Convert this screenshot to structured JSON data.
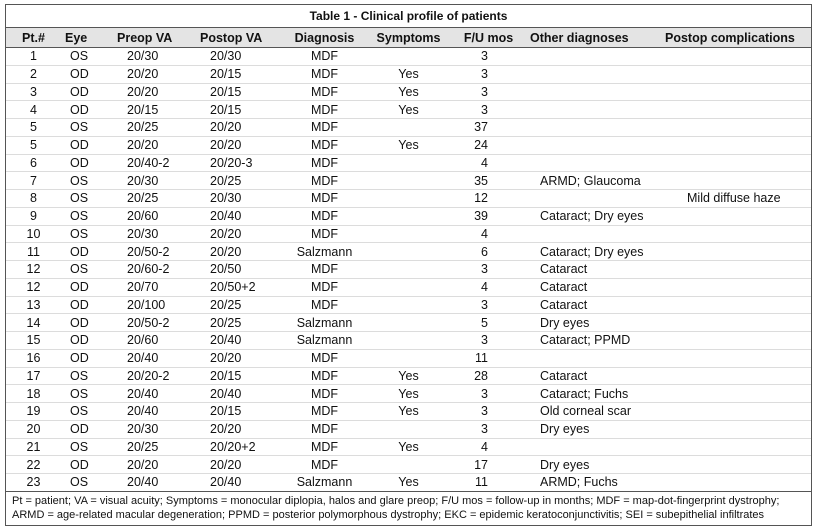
{
  "title": "Table 1 - Clinical profile of patients",
  "table": {
    "columns": [
      "Pt.#",
      "Eye",
      "Preop VA",
      "Postop VA",
      "Diagnosis",
      "Symptoms",
      "F/U mos",
      "Other diagnoses",
      "Postop complications"
    ],
    "rows": [
      [
        1,
        "OS",
        "20/30",
        "20/30",
        "MDF",
        null,
        3,
        null,
        null
      ],
      [
        2,
        "OD",
        "20/20",
        "20/15",
        "MDF",
        "Yes",
        3,
        null,
        null
      ],
      [
        3,
        "OD",
        "20/20",
        "20/15",
        "MDF",
        "Yes",
        3,
        null,
        null
      ],
      [
        4,
        "OD",
        "20/15",
        "20/15",
        "MDF",
        "Yes",
        3,
        null,
        null
      ],
      [
        5,
        "OS",
        "20/25",
        "20/20",
        "MDF",
        null,
        37,
        null,
        null
      ],
      [
        5,
        "OD",
        "20/20",
        "20/20",
        "MDF",
        "Yes",
        24,
        null,
        null
      ],
      [
        6,
        "OD",
        "20/40-2",
        "20/20-3",
        "MDF",
        null,
        4,
        null,
        null
      ],
      [
        7,
        "OS",
        "20/30",
        "20/25",
        "MDF",
        null,
        35,
        "ARMD; Glaucoma",
        null
      ],
      [
        8,
        "OS",
        "20/25",
        "20/30",
        "MDF",
        null,
        12,
        null,
        "Mild diffuse haze"
      ],
      [
        9,
        "OS",
        "20/60",
        "20/40",
        "MDF",
        null,
        39,
        "Cataract; Dry eyes",
        null
      ],
      [
        10,
        "OS",
        "20/30",
        "20/20",
        "MDF",
        null,
        4,
        null,
        null
      ],
      [
        11,
        "OD",
        "20/50-2",
        "20/20",
        "Salzmann",
        null,
        6,
        "Cataract; Dry eyes",
        null
      ],
      [
        12,
        "OS",
        "20/60-2",
        "20/50",
        "MDF",
        null,
        3,
        "Cataract",
        null
      ],
      [
        12,
        "OD",
        "20/70",
        "20/50+2",
        "MDF",
        null,
        4,
        "Cataract",
        null
      ],
      [
        13,
        "OD",
        "20/100",
        "20/25",
        "MDF",
        null,
        3,
        "Cataract",
        null
      ],
      [
        14,
        "OD",
        "20/50-2",
        "20/25",
        "Salzmann",
        null,
        5,
        "Dry eyes",
        null
      ],
      [
        15,
        "OD",
        "20/60",
        "20/40",
        "Salzmann",
        null,
        3,
        "Cataract; PPMD",
        null
      ],
      [
        16,
        "OD",
        "20/40",
        "20/20",
        "MDF",
        null,
        11,
        null,
        null
      ],
      [
        17,
        "OS",
        "20/20-2",
        "20/15",
        "MDF",
        "Yes",
        28,
        "Cataract",
        null
      ],
      [
        18,
        "OS",
        "20/40",
        "20/40",
        "MDF",
        "Yes",
        3,
        "Cataract; Fuchs",
        null
      ],
      [
        19,
        "OS",
        "20/40",
        "20/15",
        "MDF",
        "Yes",
        3,
        "Old corneal scar",
        null
      ],
      [
        20,
        "OD",
        "20/30",
        "20/20",
        "MDF",
        null,
        3,
        "Dry eyes",
        null
      ],
      [
        21,
        "OS",
        "20/25",
        "20/20+2",
        "MDF",
        "Yes",
        4,
        null,
        null
      ],
      [
        22,
        "OD",
        "20/20",
        "20/20",
        "MDF",
        null,
        17,
        "Dry eyes",
        null
      ],
      [
        23,
        "OS",
        "20/40",
        "20/40",
        "Salzmann",
        "Yes",
        11,
        "ARMD; Fuchs",
        null
      ]
    ]
  },
  "footnote": "Pt = patient; VA = visual acuity; Symptoms = monocular diplopia, halos and glare preop; F/U mos = follow-up in months; MDF = map-dot-fingerprint dystrophy; ARMD = age-related macular degeneration; PPMD = posterior polymorphous dystrophy; EKC = epidemic keratoconjunctivitis; SEI = subepithelial infiltrates"
}
